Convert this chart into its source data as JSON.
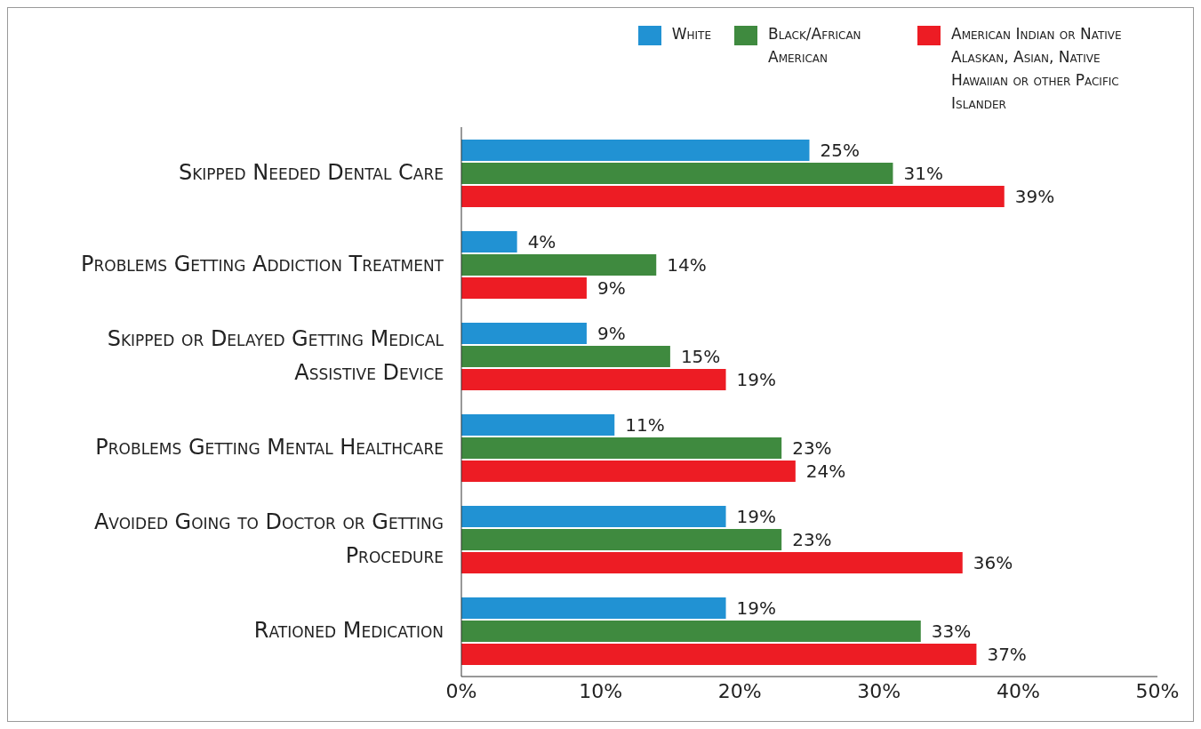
{
  "chart_data": {
    "type": "bar",
    "orientation": "horizontal",
    "categories": [
      "Skipped Needed Dental Care",
      "Problems Getting Addiction Treatment",
      "Skipped or Delayed Getting Medical Assistive Device",
      "Problems Getting Mental Healthcare",
      "Avoided Going to Doctor or Getting Procedure",
      "Rationed Medication"
    ],
    "series": [
      {
        "name": "White",
        "color": "#2192d3",
        "values": [
          25,
          4,
          9,
          11,
          19,
          19
        ],
        "value_labels": [
          "25%",
          "4%",
          "9%",
          "11%",
          "19%",
          "19%"
        ]
      },
      {
        "name": "Black/African American",
        "color": "#3f8a3f",
        "values": [
          31,
          14,
          15,
          23,
          23,
          33
        ],
        "value_labels": [
          "31%",
          "14%",
          "15%",
          "23%",
          "23%",
          "33%"
        ]
      },
      {
        "name": "American Indian or Native Alaskan, Asian, Native Hawaiian or other Pacific Islander",
        "color": "#ed1c24",
        "values": [
          39,
          9,
          19,
          24,
          36,
          37
        ],
        "value_labels": [
          "39%",
          "9%",
          "19%",
          "24%",
          "36%",
          "37%"
        ]
      }
    ],
    "xlim": [
      0,
      50
    ],
    "xticks": [
      {
        "value": 0,
        "label": "0%"
      },
      {
        "value": 10,
        "label": "10%"
      },
      {
        "value": 20,
        "label": "20%"
      },
      {
        "value": 30,
        "label": "30%"
      },
      {
        "value": 40,
        "label": "40%"
      },
      {
        "value": 50,
        "label": "50%"
      }
    ],
    "grid": false,
    "legend": "top right"
  }
}
